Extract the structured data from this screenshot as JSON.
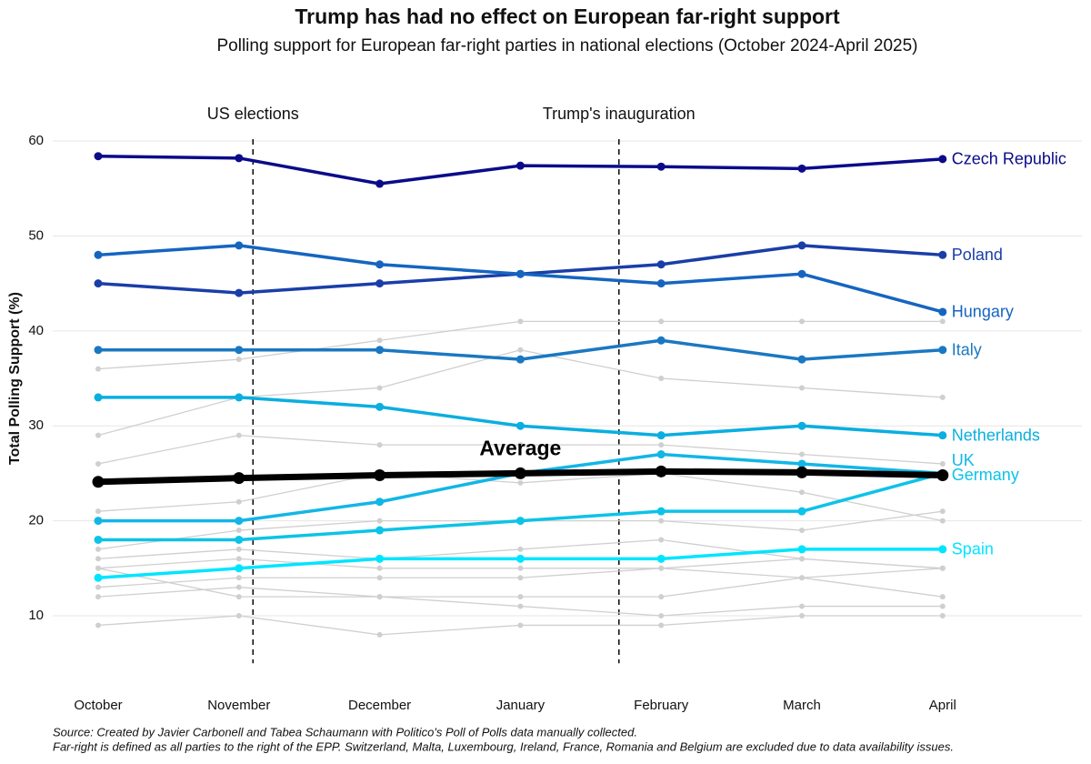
{
  "chart_data": {
    "type": "line",
    "title": "Trump has had no effect on European far-right support",
    "subtitle": "Polling support for European far-right parties in national elections (October 2024-April 2025)",
    "y_label": "Total Polling Support (%)",
    "categories": [
      "October",
      "November",
      "December",
      "January",
      "February",
      "March",
      "April"
    ],
    "ylim": [
      5,
      61
    ],
    "yticks": [
      10,
      20,
      30,
      40,
      50,
      60
    ],
    "grid": true,
    "events": [
      {
        "label": "US elections",
        "x": 1.1
      },
      {
        "label": "Trump's inauguration",
        "x": 3.7
      }
    ],
    "series": [
      {
        "color": "#cfcfcf",
        "values": [
          36,
          37,
          39,
          41,
          41,
          41,
          41
        ]
      },
      {
        "color": "#cfcfcf",
        "values": [
          29,
          33,
          34,
          38,
          35,
          34,
          33
        ]
      },
      {
        "color": "#cfcfcf",
        "values": [
          26,
          29,
          28,
          28,
          28,
          27,
          26
        ]
      },
      {
        "color": "#cfcfcf",
        "values": [
          21,
          22,
          25,
          24,
          25,
          23,
          20
        ]
      },
      {
        "color": "#cfcfcf",
        "values": [
          17,
          19,
          20,
          20,
          20,
          19,
          21
        ]
      },
      {
        "color": "#cfcfcf",
        "values": [
          16,
          17,
          16,
          17,
          18,
          16,
          15
        ]
      },
      {
        "color": "#cfcfcf",
        "values": [
          15,
          16,
          15,
          15,
          15,
          16,
          15
        ]
      },
      {
        "color": "#cfcfcf",
        "values": [
          13,
          14,
          14,
          14,
          15,
          14,
          12
        ]
      },
      {
        "color": "#cfcfcf",
        "values": [
          12,
          13,
          12,
          12,
          12,
          14,
          15
        ]
      },
      {
        "color": "#cfcfcf",
        "values": [
          15,
          12,
          12,
          11,
          10,
          11,
          11
        ]
      },
      {
        "color": "#cfcfcf",
        "values": [
          9,
          10,
          8,
          9,
          9,
          10,
          10
        ]
      },
      {
        "name": "Czech Republic",
        "color": "#0b0b8a",
        "values": [
          58.4,
          58.2,
          55.5,
          57.4,
          57.3,
          57.1,
          58.1
        ]
      },
      {
        "name": "Poland",
        "color": "#1a3ea8",
        "values": [
          45,
          44,
          45,
          46,
          47,
          49,
          48
        ]
      },
      {
        "name": "Hungary",
        "color": "#1565c0",
        "values": [
          48,
          49,
          47,
          46,
          45,
          46,
          42
        ]
      },
      {
        "name": "Italy",
        "color": "#1a78c2",
        "values": [
          38,
          38,
          38,
          37,
          39,
          37,
          38
        ]
      },
      {
        "name": "Netherlands",
        "color": "#0aaee0",
        "values": [
          33,
          33,
          32,
          30,
          29,
          30,
          29
        ]
      },
      {
        "name": "UK",
        "color": "#12b6e6",
        "values": [
          20,
          20,
          22,
          25,
          27,
          26,
          25
        ]
      },
      {
        "name": "Germany",
        "color": "#0cc3e8",
        "values": [
          18,
          18,
          19,
          20,
          21,
          21,
          25
        ]
      },
      {
        "name": "Spain",
        "color": "#00e5ff",
        "values": [
          14,
          15,
          16,
          16,
          16,
          17,
          17
        ]
      }
    ],
    "average": {
      "name": "Average",
      "color": "#000000",
      "values": [
        24.1,
        24.5,
        24.8,
        25.0,
        25.2,
        25.1,
        24.8
      ]
    },
    "source": "Source: Created by Javier Carbonell and Tabea Schaumann with Politico's Poll of Polls data manually collected.",
    "note": "Far-right is defined as all parties to the right of the EPP. Switzerland, Malta, Luxembourg, Ireland, France, Romania and Belgium are excluded due to data availability issues."
  }
}
